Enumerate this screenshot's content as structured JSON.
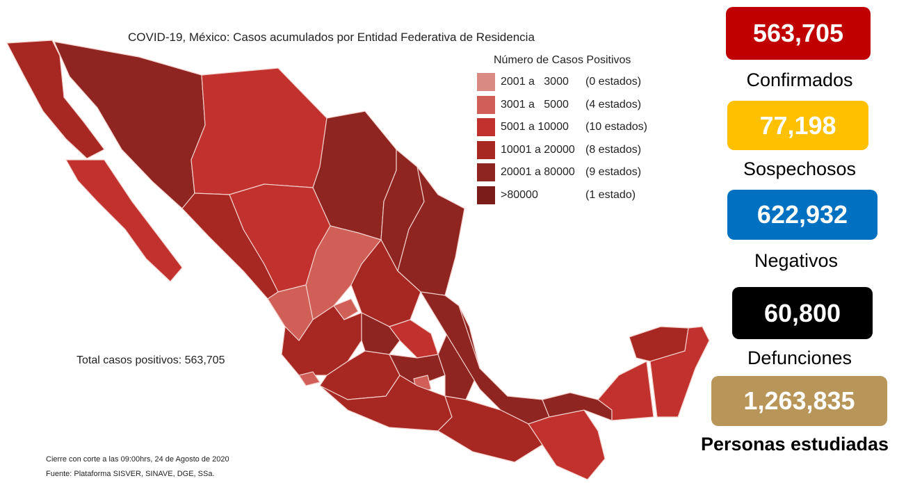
{
  "title": "COVID-19, México: Casos acumulados por Entidad Federativa de Residencia",
  "legend": {
    "title": "Número de Casos Positivos",
    "items": [
      {
        "range": "2001 a   3000",
        "count": "(0 estados)",
        "color": "#d98a82"
      },
      {
        "range": "3001 a   5000",
        "count": "(4 estados)",
        "color": "#cf5f57"
      },
      {
        "range": "5001 a 10000",
        "count": "(10 estados)",
        "color": "#c1322e"
      },
      {
        "range": "10001 a 20000",
        "count": "(8 estados)",
        "color": "#a72822"
      },
      {
        "range": "20001 a 80000",
        "count": "(9 estados)",
        "color": "#8f2521"
      },
      {
        "range": ">80000",
        "count": "(1 estado)",
        "color": "#7a1c18"
      }
    ]
  },
  "total_text": "Total casos positivos: 563,705",
  "footnote": {
    "cutoff": "Cierre con corte a las 09:00hrs, 24 de Agosto de 2020",
    "source": "Fuente: Plataforma SISVER, SINAVE, DGE, SSa."
  },
  "stats": [
    {
      "value": "563,705",
      "label": "Confirmados",
      "color": "#c00000",
      "text_color": "#ffffff"
    },
    {
      "value": "77,198",
      "label": "Sospechosos",
      "color": "#ffc000",
      "text_color": "#ffffff"
    },
    {
      "value": "622,932",
      "label": "Negativos",
      "color": "#0070c0",
      "text_color": "#ffffff"
    },
    {
      "value": "60,800",
      "label": "Defunciones",
      "color": "#000000",
      "text_color": "#ffffff"
    },
    {
      "value": "1,263,835",
      "label": "Personas estudiadas",
      "color": "#b8965a",
      "text_color": "#ffffff"
    }
  ]
}
